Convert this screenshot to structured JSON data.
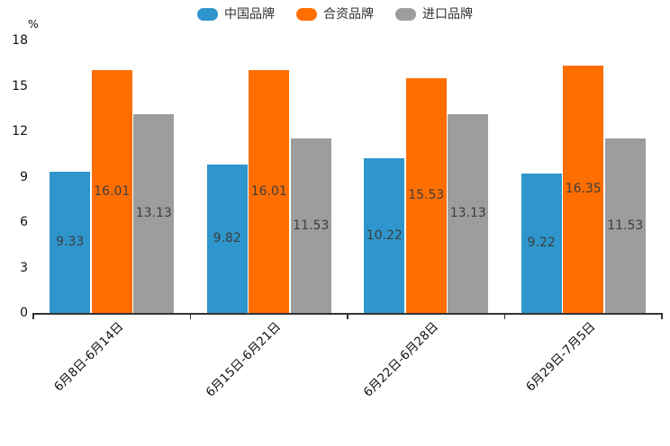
{
  "chart_data": {
    "type": "bar",
    "title": "",
    "ylabel": "%",
    "legend_position": "top",
    "grid": false,
    "bar_value_labels_visible": true,
    "categories": [
      "6月8日-6月14日",
      "6月15日-6月21日",
      "6月22日-6月28日",
      "6月29日-7月5日"
    ],
    "series": [
      {
        "name": "中国品牌",
        "color": "#2E96CC",
        "values": [
          9.33,
          9.82,
          10.22,
          9.22
        ]
      },
      {
        "name": "合资品牌",
        "color": "#FF6E00",
        "values": [
          16.01,
          16.01,
          15.53,
          16.35
        ]
      },
      {
        "name": "进口品牌",
        "color": "#9D9D9D",
        "values": [
          13.13,
          11.53,
          13.13,
          11.53
        ]
      }
    ],
    "y_axis": {
      "min": 0,
      "max": 18,
      "interval": 3,
      "tick_labels": [
        "0",
        "3",
        "6",
        "9",
        "12",
        "15",
        "18"
      ]
    }
  },
  "colors": {
    "background": "#ffffff",
    "axis": "#333333",
    "tick_label": "#111111",
    "value_label": "#3d3d3d",
    "legend_label": "#333333"
  }
}
